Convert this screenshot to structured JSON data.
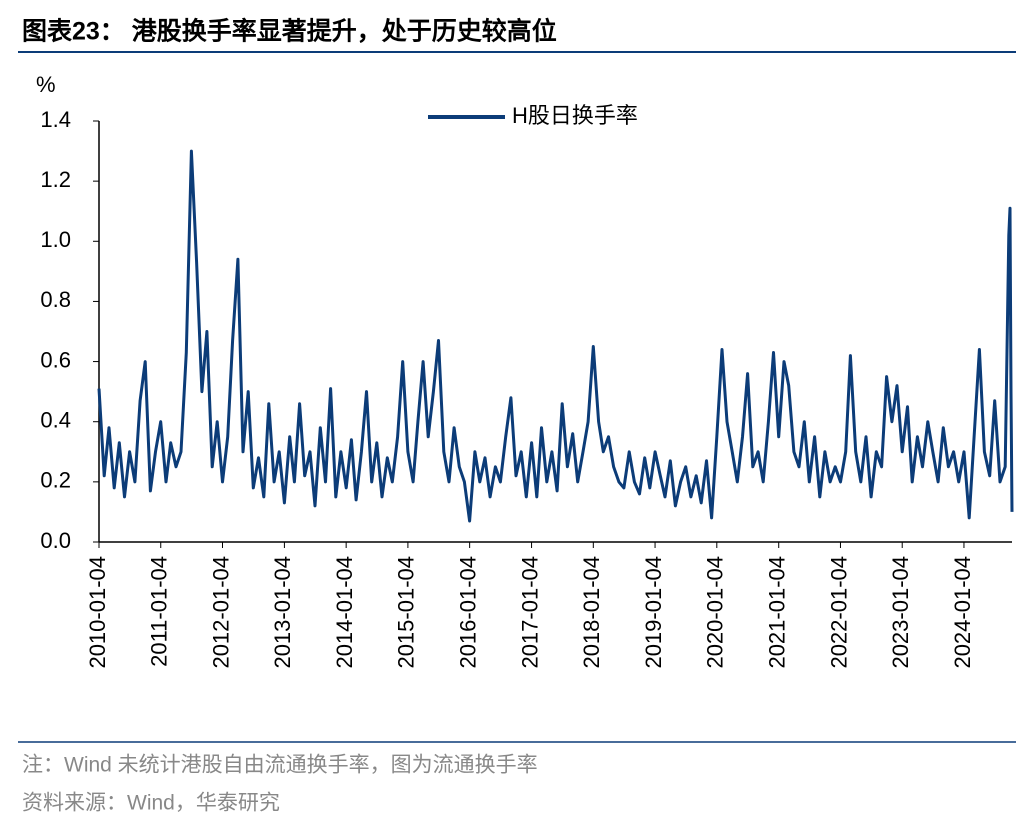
{
  "chart_data": {
    "type": "line",
    "title": "图表23：  港股换手率显著提升，处于历史较高位",
    "y_unit": "%",
    "notes": [
      "注：Wind 未统计港股自由流通换手率，图为流通换手率",
      "资料来源：Wind，华泰研究"
    ],
    "legend": "upper-center",
    "xlim": [
      "2010-01-04",
      "2024-10-14"
    ],
    "xticks": [
      "2010-01-04",
      "2011-01-04",
      "2012-01-04",
      "2013-01-04",
      "2014-01-04",
      "2015-01-04",
      "2016-01-04",
      "2017-01-04",
      "2018-01-04",
      "2019-01-04",
      "2020-01-04",
      "2021-01-04",
      "2022-01-04",
      "2023-01-04",
      "2024-01-04"
    ],
    "ylim": [
      0,
      1.4
    ],
    "yticks": [
      {
        "value": 0,
        "label": "0.0"
      },
      0.2,
      0.4,
      0.6,
      0.8,
      {
        "value": 1,
        "label": "1.0"
      },
      1.2,
      1.4
    ],
    "x": [
      "2010-01-04",
      "2010-02-04",
      "2010-03-04",
      "2010-04-04",
      "2010-05-04",
      "2010-06-04",
      "2010-07-04",
      "2010-08-04",
      "2010-09-04",
      "2010-10-04",
      "2010-11-04",
      "2010-12-04",
      "2011-01-04",
      "2011-02-04",
      "2011-03-04",
      "2011-04-04",
      "2011-05-04",
      "2011-06-04",
      "2011-07-04",
      "2011-08-04",
      "2011-09-04",
      "2011-10-04",
      "2011-11-04",
      "2011-12-04",
      "2012-01-04",
      "2012-02-04",
      "2012-03-04",
      "2012-04-04",
      "2012-05-04",
      "2012-06-04",
      "2012-07-04",
      "2012-08-04",
      "2012-09-04",
      "2012-10-04",
      "2012-11-04",
      "2012-12-04",
      "2013-01-04",
      "2013-02-04",
      "2013-03-04",
      "2013-04-04",
      "2013-05-04",
      "2013-06-04",
      "2013-07-04",
      "2013-08-04",
      "2013-09-04",
      "2013-10-04",
      "2013-11-04",
      "2013-12-04",
      "2014-01-04",
      "2014-02-04",
      "2014-03-04",
      "2014-04-04",
      "2014-05-04",
      "2014-06-04",
      "2014-07-04",
      "2014-08-04",
      "2014-09-04",
      "2014-10-04",
      "2014-11-04",
      "2014-12-04",
      "2015-01-04",
      "2015-02-04",
      "2015-03-04",
      "2015-04-04",
      "2015-05-04",
      "2015-06-04",
      "2015-07-04",
      "2015-08-04",
      "2015-09-04",
      "2015-10-04",
      "2015-11-04",
      "2015-12-04",
      "2016-01-04",
      "2016-02-04",
      "2016-03-04",
      "2016-04-04",
      "2016-05-04",
      "2016-06-04",
      "2016-07-04",
      "2016-08-04",
      "2016-09-04",
      "2016-10-04",
      "2016-11-04",
      "2016-12-04",
      "2017-01-04",
      "2017-02-04",
      "2017-03-04",
      "2017-04-04",
      "2017-05-04",
      "2017-06-04",
      "2017-07-04",
      "2017-08-04",
      "2017-09-04",
      "2017-10-04",
      "2017-11-04",
      "2017-12-04",
      "2018-01-04",
      "2018-02-04",
      "2018-03-04",
      "2018-04-04",
      "2018-05-04",
      "2018-06-04",
      "2018-07-04",
      "2018-08-04",
      "2018-09-04",
      "2018-10-04",
      "2018-11-04",
      "2018-12-04",
      "2019-01-04",
      "2019-02-04",
      "2019-03-04",
      "2019-04-04",
      "2019-05-04",
      "2019-06-04",
      "2019-07-04",
      "2019-08-04",
      "2019-09-04",
      "2019-10-04",
      "2019-11-04",
      "2019-12-04",
      "2020-01-04",
      "2020-02-04",
      "2020-03-04",
      "2020-04-04",
      "2020-05-04",
      "2020-06-04",
      "2020-07-04",
      "2020-08-04",
      "2020-09-04",
      "2020-10-04",
      "2020-11-04",
      "2020-12-04",
      "2021-01-04",
      "2021-02-04",
      "2021-03-04",
      "2021-04-04",
      "2021-05-04",
      "2021-06-04",
      "2021-07-04",
      "2021-08-04",
      "2021-09-04",
      "2021-10-04",
      "2021-11-04",
      "2021-12-04",
      "2022-01-04",
      "2022-02-04",
      "2022-03-04",
      "2022-04-04",
      "2022-05-04",
      "2022-06-04",
      "2022-07-04",
      "2022-08-04",
      "2022-09-04",
      "2022-10-04",
      "2022-11-04",
      "2022-12-04",
      "2023-01-04",
      "2023-02-04",
      "2023-03-04",
      "2023-04-04",
      "2023-05-04",
      "2023-06-04",
      "2023-07-04",
      "2023-08-04",
      "2023-09-04",
      "2023-10-04",
      "2023-11-04",
      "2023-12-04",
      "2024-01-04",
      "2024-02-04",
      "2024-03-04",
      "2024-04-04",
      "2024-05-04",
      "2024-06-04",
      "2024-07-04",
      "2024-08-04",
      "2024-09-04",
      "2024-09-25",
      "2024-10-02",
      "2024-10-08",
      "2024-10-14"
    ],
    "series": [
      {
        "name": "H股日换手率",
        "color": "#0c3c78",
        "values": [
          0.51,
          0.22,
          0.38,
          0.18,
          0.33,
          0.15,
          0.3,
          0.2,
          0.47,
          0.6,
          0.17,
          0.3,
          0.4,
          0.2,
          0.33,
          0.25,
          0.3,
          0.63,
          1.3,
          0.93,
          0.5,
          0.7,
          0.25,
          0.4,
          0.2,
          0.35,
          0.67,
          0.94,
          0.3,
          0.5,
          0.18,
          0.28,
          0.15,
          0.46,
          0.2,
          0.3,
          0.13,
          0.35,
          0.2,
          0.46,
          0.22,
          0.3,
          0.12,
          0.38,
          0.2,
          0.51,
          0.15,
          0.3,
          0.18,
          0.34,
          0.14,
          0.3,
          0.5,
          0.2,
          0.33,
          0.15,
          0.28,
          0.2,
          0.35,
          0.6,
          0.3,
          0.2,
          0.4,
          0.6,
          0.35,
          0.5,
          0.67,
          0.3,
          0.2,
          0.38,
          0.25,
          0.2,
          0.07,
          0.3,
          0.2,
          0.28,
          0.15,
          0.25,
          0.2,
          0.35,
          0.48,
          0.22,
          0.3,
          0.15,
          0.33,
          0.15,
          0.38,
          0.2,
          0.3,
          0.17,
          0.46,
          0.25,
          0.36,
          0.2,
          0.3,
          0.4,
          0.65,
          0.4,
          0.3,
          0.35,
          0.25,
          0.2,
          0.18,
          0.3,
          0.2,
          0.16,
          0.28,
          0.18,
          0.3,
          0.22,
          0.15,
          0.27,
          0.12,
          0.2,
          0.25,
          0.15,
          0.22,
          0.13,
          0.27,
          0.08,
          0.35,
          0.64,
          0.4,
          0.3,
          0.2,
          0.35,
          0.56,
          0.25,
          0.3,
          0.2,
          0.4,
          0.63,
          0.35,
          0.6,
          0.52,
          0.3,
          0.25,
          0.4,
          0.2,
          0.35,
          0.15,
          0.3,
          0.2,
          0.25,
          0.2,
          0.3,
          0.62,
          0.3,
          0.2,
          0.35,
          0.15,
          0.3,
          0.25,
          0.55,
          0.4,
          0.52,
          0.3,
          0.45,
          0.2,
          0.35,
          0.25,
          0.4,
          0.3,
          0.2,
          0.38,
          0.25,
          0.3,
          0.2,
          0.3,
          0.08,
          0.35,
          0.64,
          0.3,
          0.22,
          0.47,
          0.2,
          0.25,
          1.02,
          1.11,
          0.5,
          0.1
        ]
      }
    ]
  }
}
